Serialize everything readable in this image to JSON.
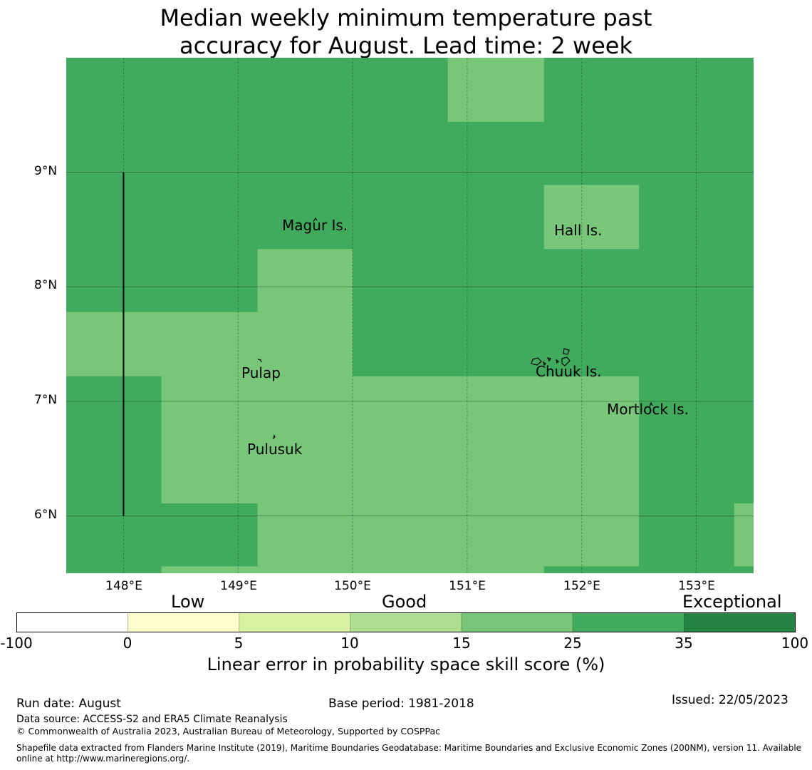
{
  "title": {
    "line1": "Median weekly minimum temperature past",
    "line2": "accuracy for August. Lead time: 2 week"
  },
  "map": {
    "lon_range": [
      147.5,
      153.5
    ],
    "lat_range": [
      5.5,
      10.0
    ],
    "grid_on": true,
    "x_ticks": [
      "148°E",
      "149°E",
      "150°E",
      "151°E",
      "152°E",
      "153°E"
    ],
    "y_ticks": [
      "9°N",
      "8°N",
      "7°N",
      "6°N"
    ],
    "base_class": "25 to 35",
    "colors": {
      "15 to 25": "#78c679",
      "25 to 35": "#41ab5d"
    },
    "regions_15_to_25": [
      {
        "lon": [
          150.83,
          151.67
        ],
        "lat": [
          9.44,
          10.0
        ]
      },
      {
        "lon": [
          151.67,
          152.5
        ],
        "lat": [
          8.33,
          8.89
        ]
      },
      {
        "lon": [
          149.17,
          150.0
        ],
        "lat": [
          7.78,
          8.33
        ]
      },
      {
        "lon": [
          147.5,
          150.0
        ],
        "lat": [
          7.22,
          7.78
        ]
      },
      {
        "lon": [
          148.33,
          152.5
        ],
        "lat": [
          6.11,
          7.22
        ]
      },
      {
        "lon": [
          149.17,
          152.5
        ],
        "lat": [
          5.56,
          6.11
        ]
      },
      {
        "lon": [
          148.33,
          149.17
        ],
        "lat": [
          5.5,
          5.56
        ]
      },
      {
        "lon": [
          149.17,
          151.67
        ],
        "lat": [
          5.5,
          5.56
        ]
      },
      {
        "lon": [
          153.33,
          153.5
        ],
        "lat": [
          5.56,
          6.11
        ]
      }
    ],
    "boundary_line": {
      "lon": 148.0,
      "lat": [
        6.0,
        9.0
      ]
    },
    "places": [
      {
        "name": "Magur Is.",
        "lon": 149.6,
        "lat": 8.55
      },
      {
        "name": "Hall Is.",
        "lon": 151.97,
        "lat": 8.5
      },
      {
        "name": "Pulap",
        "lon": 149.2,
        "lat": 7.25
      },
      {
        "name": "Chuuk Is.",
        "lon": 151.9,
        "lat": 7.26
      },
      {
        "name": "Mortlock Is.",
        "lon": 152.6,
        "lat": 6.93
      },
      {
        "name": "Pulusuk",
        "lon": 149.33,
        "lat": 6.6
      }
    ]
  },
  "legend": {
    "categories": [
      "Low",
      "Good",
      "Exceptional"
    ],
    "bins": [
      {
        "range": "-100 to 0",
        "color": "#ffffff"
      },
      {
        "range": "0 to 5",
        "color": "#ffffcc"
      },
      {
        "range": "5 to 10",
        "color": "#d9f0a3"
      },
      {
        "range": "10 to 15",
        "color": "#addd8e"
      },
      {
        "range": "15 to 25",
        "color": "#78c679"
      },
      {
        "range": "25 to 35",
        "color": "#41ab5d"
      },
      {
        "range": "35 to 100",
        "color": "#238443"
      }
    ],
    "ticks": [
      "-100",
      "0",
      "5",
      "10",
      "15",
      "25",
      "35",
      "100"
    ],
    "label": "Linear error in probability space skill score (%)"
  },
  "footer": {
    "run_date": "Run date: August",
    "base_period": "Base period: 1981-2018",
    "issued": "Issued: 22/05/2023",
    "data_source": "Data source: ACCESS-S2 and ERA5 Climate Reanalysis",
    "copyright": "© Commonwealth of Australia 2023, Australian Bureau of Meteorology, Supported by COSPPac",
    "shapefile_line1": "Shapefile data extracted from Flanders Marine Institute (2019), Maritime Boundaries Geodatabase: Maritime Boundaries and Exclusive Economic Zones (200NM), version 11. Available",
    "shapefile_line2": "online at http://www.marineregions.org/."
  }
}
